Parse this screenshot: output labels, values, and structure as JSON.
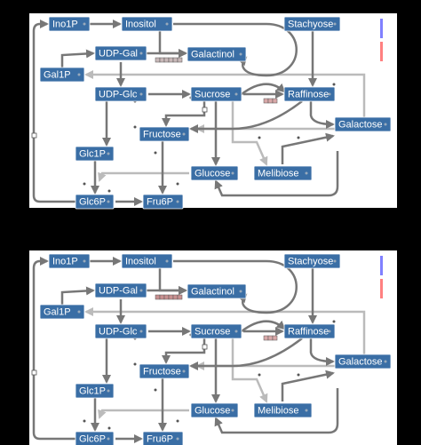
{
  "panels": [
    {
      "nodes": [
        "Ino1P",
        "Inositol",
        "Stachyose",
        "UDP-Gal",
        "Galactinol",
        "Gal1P",
        "UDP-Glc",
        "Sucrose",
        "Raffinose",
        "Galactose",
        "Fructose",
        "Glc1P",
        "Glucose",
        "Melibiose",
        "Glc6P",
        "Fru6P"
      ]
    },
    {
      "nodes": [
        "Ino1P",
        "Inositol",
        "Stachyose",
        "UDP-Gal",
        "Galactinol",
        "Gal1P",
        "UDP-Glc",
        "Sucrose",
        "Raffinose",
        "Galactose",
        "Fructose",
        "Glc1P",
        "Glucose",
        "Melibiose",
        "Glc6P",
        "Fru6P"
      ]
    }
  ]
}
